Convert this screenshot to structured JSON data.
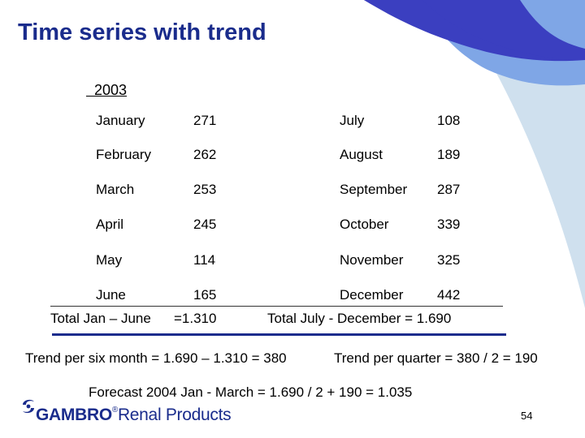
{
  "slide": {
    "title": "Time series with trend",
    "year": "  2003",
    "months_left": [
      {
        "month": "January",
        "value": "271"
      },
      {
        "month": "February",
        "value": "262"
      },
      {
        "month": "March",
        "value": "253"
      },
      {
        "month": "April",
        "value": "245"
      },
      {
        "month": "May",
        "value": "114"
      },
      {
        "month": "June",
        "value": "165"
      }
    ],
    "months_right": [
      {
        "month": "July",
        "value": "108"
      },
      {
        "month": "August",
        "value": "189"
      },
      {
        "month": "September",
        "value": "287"
      },
      {
        "month": "October",
        "value": "339"
      },
      {
        "month": "November",
        "value": "325"
      },
      {
        "month": "December",
        "value": "442"
      }
    ],
    "total_first_label": "Total Jan – June",
    "total_first_value": "=1.310",
    "total_second": "Total July - December = 1.690",
    "trend_six_month": "Trend per six month = 1.690 – 1.310 = 380",
    "trend_quarter": "Trend per quarter = 380 / 2 = 190",
    "forecast": "Forecast 2004 Jan - March = 1.690 / 2 + 190 = 1.035",
    "page_number": "54"
  },
  "logo": {
    "brand": "GAMBRO",
    "registered": "®",
    "division": "Renal Products"
  },
  "colors": {
    "title": "#1a2c8c",
    "arc_dark": "#3b3fc0",
    "arc_mid": "#7fa6e6",
    "arc_light": "#cfe0ee",
    "rule": "#1a2c8c"
  }
}
